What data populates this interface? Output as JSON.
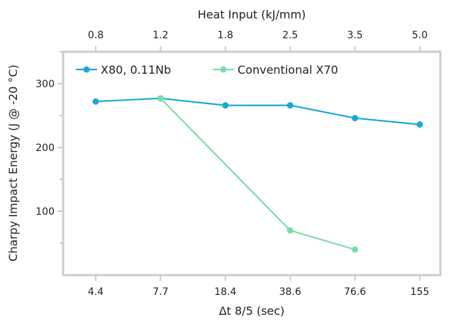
{
  "chart_data": {
    "type": "line",
    "title": "",
    "xlabel": "Δt 8/5 (sec)",
    "x2label": "Heat Input (kJ/mm)",
    "ylabel": "Charpy Impact Energy (J @ -20 °C)",
    "categories": [
      "4.4",
      "7.7",
      "18.4",
      "38.6",
      "76.6",
      "155"
    ],
    "top_categories": [
      "0.8",
      "1.2",
      "1.8",
      "2.5",
      "3.5",
      "5.0"
    ],
    "ylim": [
      0,
      350
    ],
    "yticks": [
      100,
      200,
      300
    ],
    "grid": false,
    "legend_position": "top-left",
    "series": [
      {
        "name": "X80, 0.11Nb",
        "color": "#1aa7d8",
        "values": [
          272,
          277,
          266,
          266,
          246,
          236
        ]
      },
      {
        "name": "Conventional X70",
        "color": "#7ddbaa",
        "values": [
          null,
          277,
          null,
          70,
          40,
          null
        ]
      }
    ],
    "axis_color": "#cccccc"
  }
}
